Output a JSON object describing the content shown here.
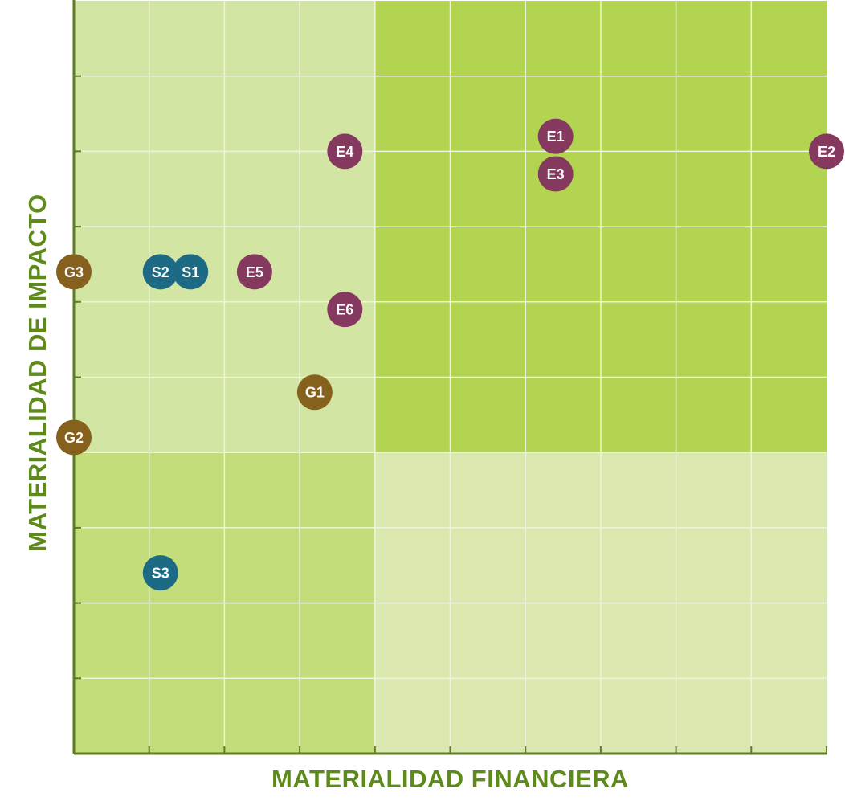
{
  "chart_data": {
    "type": "scatter",
    "title": "",
    "xlabel": "MATERIALIDAD FINANCIERA",
    "ylabel": "MATERIALIDAD DE IMPACTO",
    "xlim": [
      0,
      10
    ],
    "ylim": [
      0,
      10
    ],
    "grid": true,
    "quadrants": [
      {
        "name": "low-low",
        "x": [
          0,
          4
        ],
        "y": [
          0,
          4
        ],
        "color": "#c2dd7a"
      },
      {
        "name": "low-fin-high-impact",
        "x": [
          0,
          4
        ],
        "y": [
          4,
          10
        ],
        "color": "#d3e5a2"
      },
      {
        "name": "high-fin-high-impact",
        "x": [
          4,
          10
        ],
        "y": [
          4,
          10
        ],
        "color": "#b2d450"
      },
      {
        "name": "high-fin-low-impact",
        "x": [
          4,
          10
        ],
        "y": [
          0,
          4
        ],
        "color": "#dae8b0"
      }
    ],
    "categories_colors": {
      "E": "#86395f",
      "S": "#1d6a84",
      "G": "#86601d"
    },
    "points": [
      {
        "label": "E1",
        "group": "E",
        "x": 6.4,
        "y": 8.2
      },
      {
        "label": "E2",
        "group": "E",
        "x": 10.0,
        "y": 8.0
      },
      {
        "label": "E3",
        "group": "E",
        "x": 6.4,
        "y": 7.7
      },
      {
        "label": "E4",
        "group": "E",
        "x": 3.6,
        "y": 8.0
      },
      {
        "label": "E5",
        "group": "E",
        "x": 2.4,
        "y": 6.4
      },
      {
        "label": "E6",
        "group": "E",
        "x": 3.6,
        "y": 5.9
      },
      {
        "label": "S1",
        "group": "S",
        "x": 1.55,
        "y": 6.4
      },
      {
        "label": "S2",
        "group": "S",
        "x": 1.15,
        "y": 6.4
      },
      {
        "label": "S3",
        "group": "S",
        "x": 1.15,
        "y": 2.4
      },
      {
        "label": "G1",
        "group": "G",
        "x": 3.2,
        "y": 4.8
      },
      {
        "label": "G2",
        "group": "G",
        "x": 0.0,
        "y": 4.2
      },
      {
        "label": "G3",
        "group": "G",
        "x": 0.0,
        "y": 6.4
      }
    ]
  }
}
